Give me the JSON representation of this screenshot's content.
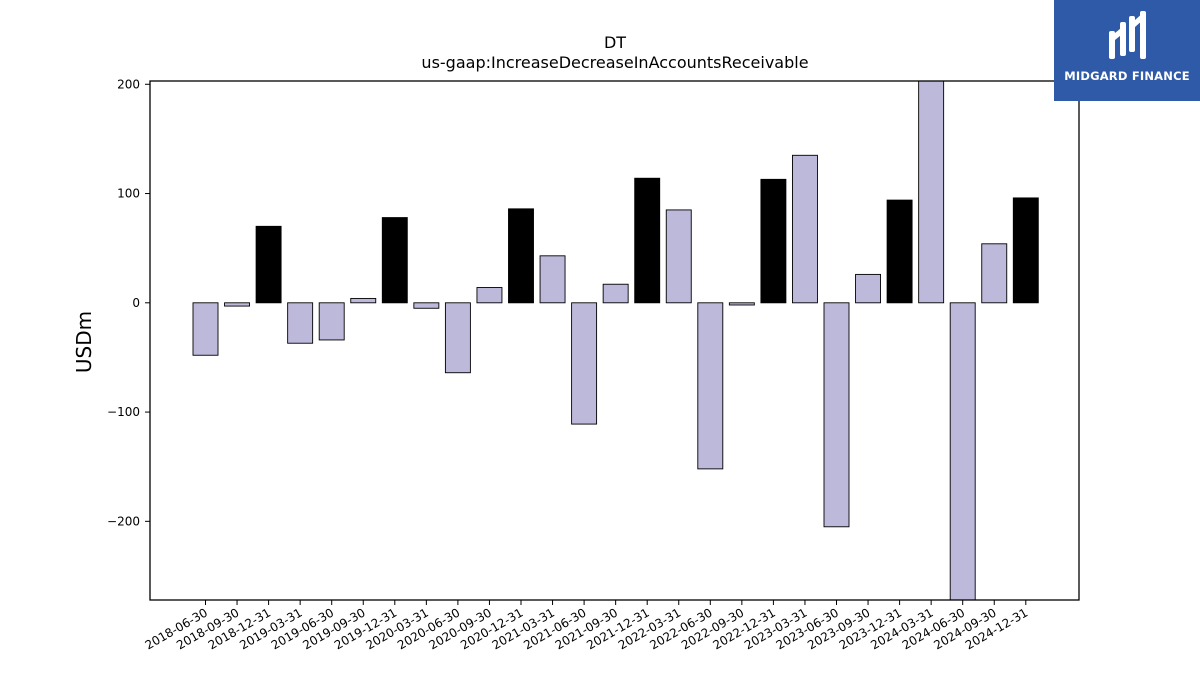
{
  "logo": {
    "text": "MIDGARD FINANCE"
  },
  "chart_data": {
    "type": "bar",
    "title": "DT",
    "subtitle": "us-gaap:IncreaseDecreaseInAccountsReceivable",
    "xlabel": "",
    "ylabel": "USDm",
    "ylim": [
      -272,
      203
    ],
    "yticks": [
      -200,
      -100,
      0,
      100,
      200
    ],
    "ytick_labels": [
      "−200",
      "−100",
      "0",
      "100",
      "200"
    ],
    "grid": false,
    "colors": {
      "quarter": "#bdb9da",
      "year_end": "#000000",
      "edge": "#000000"
    },
    "categories": [
      "2018-06-30",
      "2018-09-30",
      "2018-12-31",
      "2019-03-31",
      "2019-06-30",
      "2019-09-30",
      "2019-12-31",
      "2020-03-31",
      "2020-06-30",
      "2020-09-30",
      "2020-12-31",
      "2021-03-31",
      "2021-06-30",
      "2021-09-30",
      "2021-12-31",
      "2022-03-31",
      "2022-06-30",
      "2022-09-30",
      "2022-12-31",
      "2023-03-31",
      "2023-06-30",
      "2023-09-30",
      "2023-12-31",
      "2024-03-31",
      "2024-06-30",
      "2024-09-30",
      "2024-12-31"
    ],
    "values": [
      -48,
      -3,
      70,
      -37,
      -34,
      4,
      78,
      -5,
      -64,
      14,
      86,
      43,
      -111,
      17,
      114,
      85,
      -152,
      -2,
      113,
      135,
      -205,
      26,
      94,
      210,
      -275,
      54,
      96
    ],
    "bar_color_keys": [
      "quarter",
      "quarter",
      "year_end",
      "quarter",
      "quarter",
      "quarter",
      "year_end",
      "quarter",
      "quarter",
      "quarter",
      "year_end",
      "quarter",
      "quarter",
      "quarter",
      "year_end",
      "quarter",
      "quarter",
      "quarter",
      "year_end",
      "quarter",
      "quarter",
      "quarter",
      "year_end",
      "quarter",
      "quarter",
      "quarter",
      "year_end"
    ]
  }
}
